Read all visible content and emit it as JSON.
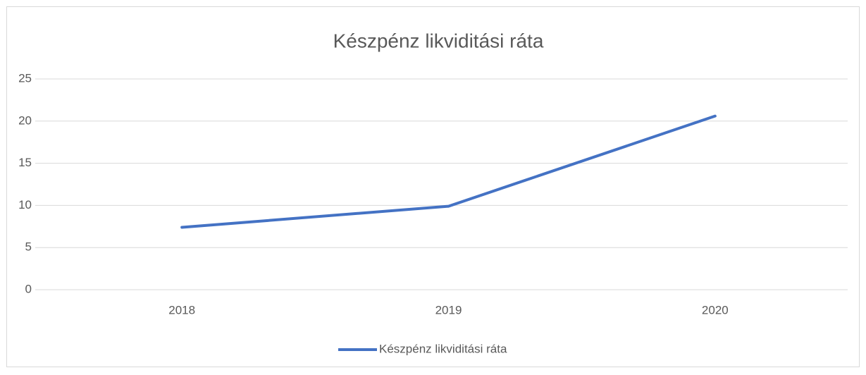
{
  "chart_data": {
    "type": "line",
    "title": "Készpénz likviditási ráta",
    "categories": [
      "2018",
      "2019",
      "2020"
    ],
    "series": [
      {
        "name": "Készpénz likviditási ráta",
        "color": "#4472c4",
        "values": [
          7.4,
          9.9,
          20.6
        ]
      }
    ],
    "ylim": [
      0,
      25
    ],
    "yticks": [
      0,
      5,
      10,
      15,
      20,
      25
    ],
    "grid": true,
    "legend": "bottom"
  }
}
